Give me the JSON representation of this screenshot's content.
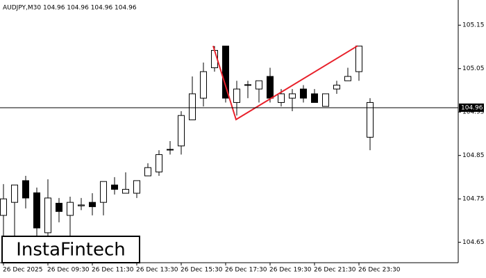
{
  "chart_data": {
    "type": "candlestick",
    "title": "AUDJPY,M30  104.96 104.96 104.96 104.96",
    "watermark": "InstaFintech",
    "categories": [
      "26 Dec 2025",
      null,
      null,
      null,
      "26 Dec 09:30",
      null,
      null,
      null,
      "26 Dec 11:30",
      null,
      null,
      null,
      "26 Dec 13:30",
      null,
      null,
      null,
      "26 Dec 15:30",
      null,
      null,
      null,
      "26 Dec 17:30",
      null,
      null,
      null,
      "26 Dec 19:30",
      null,
      null,
      null,
      "26 Dec 21:30",
      null,
      null,
      null,
      "26 Dec 23:30",
      null
    ],
    "open": [
      104.712,
      104.742,
      104.792,
      104.764,
      104.672,
      104.74,
      104.712,
      104.734,
      104.742,
      104.742,
      104.782,
      104.763,
      104.763,
      104.803,
      104.812,
      104.863,
      104.872,
      104.932,
      104.982,
      105.052,
      105.102,
      104.972,
      105.012,
      105.003,
      105.032,
      104.972,
      104.982,
      105.003,
      104.992,
      104.963,
      105.003,
      105.022,
      105.043,
      104.892
    ],
    "high": [
      104.784,
      104.782,
      104.803,
      104.776,
      104.795,
      104.752,
      104.755,
      104.752,
      104.763,
      104.79,
      104.8,
      104.811,
      104.792,
      104.832,
      104.862,
      104.883,
      104.952,
      105.032,
      105.064,
      105.102,
      105.102,
      105.022,
      105.022,
      105.022,
      105.052,
      105.003,
      105.003,
      105.012,
      105.003,
      104.992,
      105.022,
      105.052,
      105.102,
      104.982
    ],
    "low": [
      104.664,
      104.664,
      104.728,
      104.664,
      104.664,
      104.696,
      104.664,
      104.724,
      104.712,
      104.712,
      104.76,
      104.763,
      104.752,
      104.803,
      104.803,
      104.852,
      104.852,
      104.932,
      104.963,
      105.043,
      104.972,
      104.942,
      104.982,
      104.972,
      104.972,
      104.963,
      104.952,
      104.972,
      104.972,
      104.963,
      104.992,
      105.022,
      105.022,
      104.862
    ],
    "close": [
      104.75,
      104.782,
      104.752,
      104.683,
      104.752,
      104.721,
      104.742,
      104.736,
      104.732,
      104.79,
      104.772,
      104.772,
      104.792,
      104.822,
      104.852,
      104.864,
      104.942,
      104.992,
      105.043,
      105.092,
      104.982,
      105.003,
      105.013,
      105.022,
      104.982,
      104.992,
      104.992,
      104.982,
      104.972,
      104.992,
      105.012,
      105.032,
      105.102,
      104.972
    ],
    "last_price": 104.96,
    "ylim": [
      104.603,
      105.208
    ],
    "yticks": [
      104.65,
      104.75,
      104.85,
      104.95,
      105.05,
      105.15
    ],
    "up_color": "#ffffff",
    "down_color": "#000000"
  }
}
